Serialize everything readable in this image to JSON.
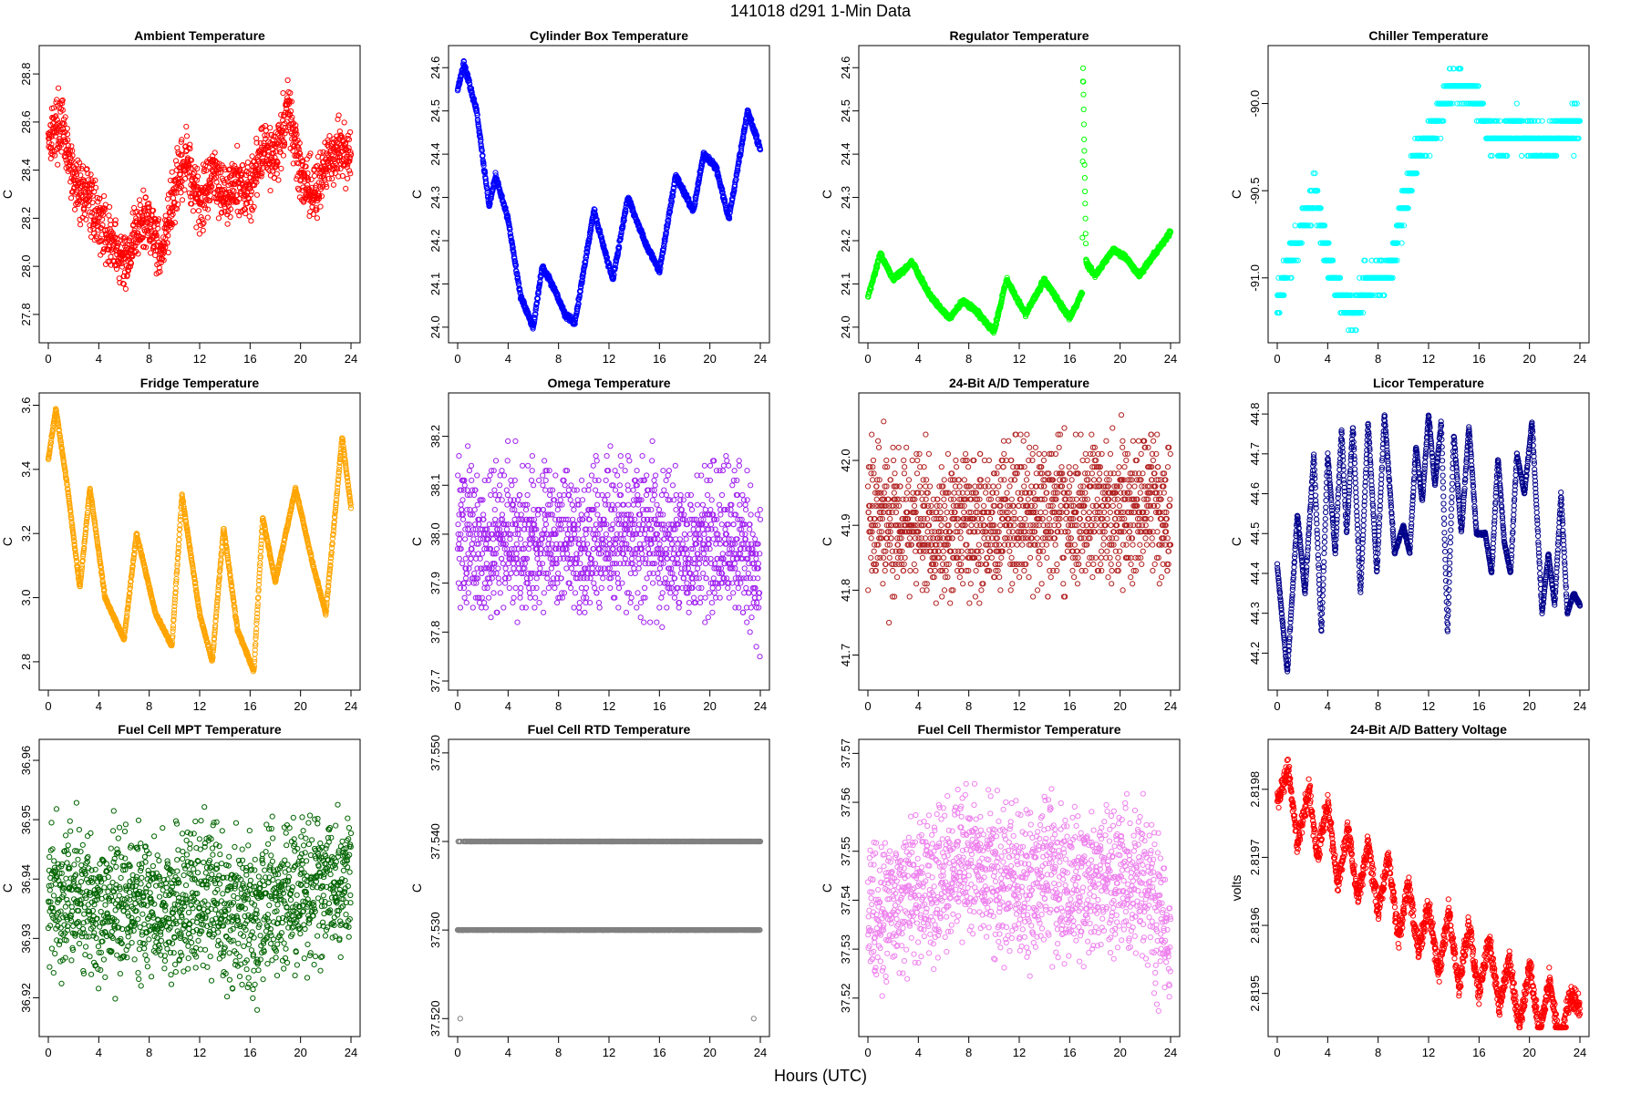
{
  "header": {
    "title": "141018    d291    1-Min Data",
    "xlabel": "Hours (UTC)"
  },
  "chart_data": [
    {
      "type": "scatter",
      "title": "Ambient Temperature",
      "ylabel": "C",
      "color": "#ff0000",
      "xlim": [
        0,
        24
      ],
      "ylim": [
        27.72,
        28.88
      ],
      "xticks": [
        "0",
        "4",
        "8",
        "12",
        "16",
        "20",
        "24"
      ],
      "xtick_values": [
        0,
        4,
        8,
        12,
        16,
        20,
        24
      ],
      "yticks": [
        "27.8",
        "28.0",
        "28.2",
        "28.4",
        "28.6",
        "28.8"
      ],
      "ytick_values": [
        27.8,
        28.0,
        28.2,
        28.4,
        28.6,
        28.8
      ],
      "series": [
        {
          "name": "Ambient Temperature",
          "x": [
            0,
            1,
            2,
            3,
            4,
            5,
            6,
            7,
            8,
            9,
            10,
            11,
            12,
            13,
            14,
            15,
            16,
            17,
            18,
            19,
            20,
            21,
            22,
            23,
            24
          ],
          "y": [
            28.55,
            28.6,
            28.35,
            28.3,
            28.2,
            28.1,
            28.0,
            28.15,
            28.2,
            28.05,
            28.3,
            28.45,
            28.25,
            28.4,
            28.3,
            28.35,
            28.3,
            28.5,
            28.45,
            28.65,
            28.4,
            28.3,
            28.4,
            28.5,
            28.45
          ],
          "noise": 0.09,
          "step": 0
        }
      ]
    },
    {
      "type": "scatter",
      "title": "Cylinder Box Temperature",
      "ylabel": "C",
      "color": "#0000ff",
      "xlim": [
        0,
        24
      ],
      "ylim": [
        23.985,
        24.63
      ],
      "xticks": [
        "0",
        "4",
        "8",
        "12",
        "16",
        "20",
        "24"
      ],
      "xtick_values": [
        0,
        4,
        8,
        12,
        16,
        20,
        24
      ],
      "yticks": [
        "24.0",
        "24.1",
        "24.2",
        "24.3",
        "24.4",
        "24.5",
        "24.6"
      ],
      "ytick_values": [
        24.0,
        24.1,
        24.2,
        24.3,
        24.4,
        24.5,
        24.6
      ],
      "series": [
        {
          "name": "Cylinder Box Temperature",
          "x": [
            0,
            0.5,
            1.5,
            2.5,
            3,
            4,
            5,
            6,
            6.7,
            7.5,
            8.5,
            9.3,
            10.8,
            12.3,
            13.5,
            14.8,
            16,
            17.3,
            18.7,
            19.5,
            20.5,
            21.5,
            23,
            24
          ],
          "y": [
            24.55,
            24.61,
            24.5,
            24.28,
            24.35,
            24.25,
            24.07,
            24.0,
            24.14,
            24.1,
            24.03,
            24.01,
            24.27,
            24.11,
            24.3,
            24.2,
            24.13,
            24.35,
            24.27,
            24.4,
            24.37,
            24.25,
            24.5,
            24.41
          ],
          "noise": 0.005,
          "step": 0
        }
      ]
    },
    {
      "type": "scatter",
      "title": "Regulator Temperature",
      "ylabel": "C",
      "color": "#00ff00",
      "xlim": [
        0,
        24
      ],
      "ylim": [
        23.985,
        24.63
      ],
      "xticks": [
        "0",
        "4",
        "8",
        "12",
        "16",
        "20",
        "24"
      ],
      "xtick_values": [
        0,
        4,
        8,
        12,
        16,
        20,
        24
      ],
      "yticks": [
        "24.0",
        "24.1",
        "24.2",
        "24.3",
        "24.4",
        "24.5",
        "24.6"
      ],
      "ytick_values": [
        24.0,
        24.1,
        24.2,
        24.3,
        24.4,
        24.5,
        24.6
      ],
      "series": [
        {
          "name": "Regulator Temperature",
          "x": [
            0,
            1,
            2,
            3.5,
            5,
            6.5,
            7.5,
            8.5,
            10,
            11,
            12.5,
            14,
            16,
            17.0,
            17.05,
            17.3,
            18,
            19.5,
            20.5,
            21.5,
            22.5,
            24
          ],
          "y": [
            24.07,
            24.17,
            24.11,
            24.15,
            24.07,
            24.02,
            24.06,
            24.04,
            23.99,
            24.11,
            24.03,
            24.11,
            24.02,
            24.08,
            24.62,
            24.15,
            24.12,
            24.18,
            24.16,
            24.12,
            24.16,
            24.22
          ],
          "noise": 0.004,
          "step": 0
        }
      ]
    },
    {
      "type": "scatter",
      "title": "Chiller Temperature",
      "ylabel": "C",
      "color": "#00ffff",
      "xlim": [
        0,
        24
      ],
      "ylim": [
        -91.32,
        -89.72
      ],
      "xticks": [
        "0",
        "4",
        "8",
        "12",
        "16",
        "20",
        "24"
      ],
      "xtick_values": [
        0,
        4,
        8,
        12,
        16,
        20,
        24
      ],
      "yticks": [
        "-91.0",
        "-90.5",
        "-90.0"
      ],
      "ytick_values": [
        -91.0,
        -90.5,
        -90.0
      ],
      "series": [
        {
          "name": "Chiller Temperature",
          "x": [
            0,
            1,
            2,
            3,
            4,
            5,
            6,
            7,
            8,
            9,
            10,
            11,
            12,
            13,
            14,
            15,
            16,
            17,
            18,
            19,
            20,
            21,
            22,
            23,
            24
          ],
          "y": [
            -91.15,
            -90.9,
            -90.7,
            -90.5,
            -90.9,
            -91.1,
            -91.2,
            -91.05,
            -91.0,
            -90.95,
            -90.6,
            -90.3,
            -90.2,
            -90.05,
            -89.85,
            -89.9,
            -90.0,
            -90.2,
            -90.2,
            -90.15,
            -90.2,
            -90.25,
            -90.2,
            -90.15,
            -90.1
          ],
          "noise": 0.07,
          "step": 0.1
        }
      ]
    },
    {
      "type": "scatter",
      "title": "Fridge Temperature",
      "ylabel": "C",
      "color": "#ffa500",
      "xlim": [
        0,
        24
      ],
      "ylim": [
        2.74,
        3.61
      ],
      "xticks": [
        "0",
        "4",
        "8",
        "12",
        "16",
        "20",
        "24"
      ],
      "xtick_values": [
        0,
        4,
        8,
        12,
        16,
        20,
        24
      ],
      "yticks": [
        "2.8",
        "3.0",
        "3.2",
        "3.4",
        "3.6"
      ],
      "ytick_values": [
        2.8,
        3.0,
        3.2,
        3.4,
        3.6
      ],
      "series": [
        {
          "name": "Fridge Temperature",
          "x": [
            0,
            0.6,
            1.5,
            2.5,
            3.3,
            4.5,
            6,
            7,
            8.5,
            9.8,
            10.6,
            12,
            13,
            13.9,
            15,
            16.3,
            17,
            18,
            19.6,
            21,
            22,
            23.3,
            24
          ],
          "y": [
            3.43,
            3.59,
            3.35,
            3.03,
            3.34,
            3.0,
            2.87,
            3.2,
            2.95,
            2.85,
            3.32,
            2.95,
            2.8,
            3.22,
            2.9,
            2.77,
            3.25,
            3.05,
            3.34,
            3.1,
            2.95,
            3.5,
            3.28
          ],
          "noise": 0.004,
          "step": 0
        }
      ]
    },
    {
      "type": "scatter",
      "title": "Omega Temperature",
      "ylabel": "C",
      "color": "#a020f0",
      "xlim": [
        0,
        24
      ],
      "ylim": [
        37.7,
        38.27
      ],
      "xticks": [
        "0",
        "4",
        "8",
        "12",
        "16",
        "20",
        "24"
      ],
      "xtick_values": [
        0,
        4,
        8,
        12,
        16,
        20,
        24
      ],
      "yticks": [
        "37.7",
        "37.8",
        "37.9",
        "38.0",
        "38.1",
        "38.2"
      ],
      "ytick_values": [
        37.7,
        37.8,
        37.9,
        38.0,
        38.1,
        38.2
      ],
      "series": [
        {
          "name": "Omega Temperature",
          "x": [
            0,
            2,
            4,
            6,
            8,
            10,
            12,
            14,
            16,
            18,
            20,
            22,
            24
          ],
          "y": [
            38.0,
            37.98,
            38.0,
            37.99,
            37.98,
            37.97,
            38.0,
            38.0,
            37.99,
            37.97,
            37.97,
            38.0,
            37.92
          ],
          "noise": 0.11,
          "step": 0.01
        }
      ]
    },
    {
      "type": "scatter",
      "title": "24-Bit A/D Temperature",
      "ylabel": "C",
      "color": "#b22222",
      "xlim": [
        0,
        24
      ],
      "ylim": [
        41.66,
        42.09
      ],
      "xticks": [
        "0",
        "4",
        "8",
        "12",
        "16",
        "20",
        "24"
      ],
      "xtick_values": [
        0,
        4,
        8,
        12,
        16,
        20,
        24
      ],
      "yticks": [
        "41.7",
        "41.8",
        "41.9",
        "42.0"
      ],
      "ytick_values": [
        41.7,
        41.8,
        41.9,
        42.0
      ],
      "series": [
        {
          "name": "24-Bit A/D Temperature",
          "x": [
            0,
            2,
            4,
            6,
            8,
            10,
            12,
            14,
            16,
            18,
            20,
            22,
            24
          ],
          "y": [
            41.92,
            41.9,
            41.9,
            41.89,
            41.9,
            41.91,
            41.91,
            41.92,
            41.92,
            41.93,
            41.92,
            41.93,
            41.9
          ],
          "noise": 0.08,
          "step": 0.01
        }
      ]
    },
    {
      "type": "scatter",
      "title": "Licor Temperature",
      "ylabel": "C",
      "color": "#00008b",
      "xlim": [
        0,
        24
      ],
      "ylim": [
        44.13,
        44.83
      ],
      "xticks": [
        "0",
        "4",
        "8",
        "12",
        "16",
        "20",
        "24"
      ],
      "xtick_values": [
        0,
        4,
        8,
        12,
        16,
        20,
        24
      ],
      "yticks": [
        "44.2",
        "44.3",
        "44.4",
        "44.5",
        "44.6",
        "44.7",
        "44.8"
      ],
      "ytick_values": [
        44.2,
        44.3,
        44.4,
        44.5,
        44.6,
        44.7,
        44.8
      ],
      "series": [
        {
          "name": "Licor Temperature",
          "x": [
            0,
            0.8,
            1.6,
            2.2,
            2.9,
            3.5,
            4.0,
            4.6,
            5.1,
            5.5,
            6.0,
            6.6,
            7.2,
            7.9,
            8.5,
            9.3,
            10.0,
            10.5,
            11.0,
            11.5,
            12.0,
            12.5,
            13.0,
            13.5,
            14.0,
            14.6,
            15.2,
            15.8,
            16.5,
            17.0,
            17.5,
            18.0,
            18.5,
            19.0,
            19.6,
            20.2,
            21.0,
            21.5,
            22.0,
            22.5,
            23.0,
            23.5,
            24.0
          ],
          "y": [
            44.42,
            44.15,
            44.55,
            44.35,
            44.7,
            44.25,
            44.7,
            44.45,
            44.76,
            44.5,
            44.77,
            44.35,
            44.78,
            44.4,
            44.8,
            44.45,
            44.52,
            44.45,
            44.72,
            44.58,
            44.8,
            44.62,
            44.78,
            44.25,
            44.75,
            44.5,
            44.77,
            44.5,
            44.5,
            44.4,
            44.69,
            44.48,
            44.4,
            44.7,
            44.6,
            44.78,
            44.3,
            44.45,
            44.32,
            44.6,
            44.3,
            44.35,
            44.32
          ],
          "noise": 0.003,
          "step": 0
        }
      ]
    },
    {
      "type": "scatter",
      "title": "Fuel Cell MPT Temperature",
      "ylabel": "C",
      "color": "#006400",
      "xlim": [
        0,
        24
      ],
      "ylim": [
        36.915,
        36.962
      ],
      "xticks": [
        "0",
        "4",
        "8",
        "12",
        "16",
        "20",
        "24"
      ],
      "xtick_values": [
        0,
        4,
        8,
        12,
        16,
        20,
        24
      ],
      "yticks": [
        "36.92",
        "36.93",
        "36.94",
        "36.95",
        "36.96"
      ],
      "ytick_values": [
        36.92,
        36.93,
        36.94,
        36.95,
        36.96
      ],
      "series": [
        {
          "name": "Fuel Cell MPT Temperature",
          "x": [
            0,
            2,
            4,
            6,
            8,
            10,
            12,
            14,
            16,
            18,
            20,
            22,
            24
          ],
          "y": [
            36.938,
            36.937,
            36.935,
            36.936,
            36.934,
            36.936,
            36.937,
            36.935,
            36.933,
            36.937,
            36.938,
            36.939,
            36.941
          ],
          "noise": 0.009,
          "step": 0
        }
      ]
    },
    {
      "type": "scatter",
      "title": "Fuel Cell RTD Temperature",
      "ylabel": "C",
      "color": "#808080",
      "xlim": [
        0,
        24
      ],
      "ylim": [
        37.519,
        37.5505
      ],
      "xticks": [
        "0",
        "4",
        "8",
        "12",
        "16",
        "20",
        "24"
      ],
      "xtick_values": [
        0,
        4,
        8,
        12,
        16,
        20,
        24
      ],
      "yticks": [
        "37.520",
        "37.530",
        "37.540",
        "37.550"
      ],
      "ytick_values": [
        37.52,
        37.53,
        37.54,
        37.55
      ],
      "series": [
        {
          "name": "Fuel Cell RTD Temperature",
          "x": [
            0,
            1,
            24
          ],
          "y": [
            37.53,
            37.535,
            37.535
          ],
          "noise": 0.0055,
          "step": 0.01
        }
      ]
    },
    {
      "type": "scatter",
      "title": "Fuel Cell Thermistor Temperature",
      "ylabel": "C",
      "color": "#ee82ee",
      "xlim": [
        0,
        24
      ],
      "ylim": [
        37.514,
        37.571
      ],
      "xticks": [
        "0",
        "4",
        "8",
        "12",
        "16",
        "20",
        "24"
      ],
      "xtick_values": [
        0,
        4,
        8,
        12,
        16,
        20,
        24
      ],
      "yticks": [
        "37.52",
        "37.53",
        "37.54",
        "37.55",
        "37.56",
        "37.57"
      ],
      "ytick_values": [
        37.52,
        37.53,
        37.54,
        37.55,
        37.56,
        37.57
      ],
      "series": [
        {
          "name": "Fuel Cell Thermistor Temperature",
          "x": [
            0,
            2,
            4,
            6,
            8,
            10,
            12,
            14,
            16,
            18,
            20,
            22,
            24
          ],
          "y": [
            37.535,
            37.54,
            37.542,
            37.544,
            37.548,
            37.545,
            37.543,
            37.545,
            37.544,
            37.543,
            37.544,
            37.542,
            37.53
          ],
          "noise": 0.011,
          "step": 0
        }
      ]
    },
    {
      "type": "scatter",
      "title": "24-Bit A/D Battery Voltage",
      "ylabel": "volts",
      "color": "#ff0000",
      "xlim": [
        0,
        24
      ],
      "ylim": [
        2.81945,
        2.81986
      ],
      "xticks": [
        "0",
        "4",
        "8",
        "12",
        "16",
        "20",
        "24"
      ],
      "xtick_values": [
        0,
        4,
        8,
        12,
        16,
        20,
        24
      ],
      "yticks": [
        "2.8195",
        "2.8196",
        "2.8197",
        "2.8198"
      ],
      "ytick_values": [
        2.8195,
        2.8196,
        2.8197,
        2.8198
      ],
      "series": [
        {
          "name": "24-Bit A/D Battery Voltage",
          "x": [
            0,
            0.9,
            1.6,
            2.5,
            3.2,
            4.0,
            4.8,
            5.6,
            6.4,
            7.2,
            8.0,
            8.8,
            9.6,
            10.4,
            11.2,
            12.0,
            12.8,
            13.6,
            14.4,
            15.2,
            16.0,
            16.8,
            17.6,
            18.4,
            19.2,
            20.0,
            20.8,
            21.6,
            22.4,
            23.2,
            24.0
          ],
          "y": [
            2.81978,
            2.81983,
            2.81972,
            2.8198,
            2.8197,
            2.81978,
            2.81966,
            2.81974,
            2.81964,
            2.81972,
            2.81962,
            2.8197,
            2.81958,
            2.81966,
            2.81956,
            2.81963,
            2.81953,
            2.81962,
            2.81951,
            2.8196,
            2.8195,
            2.81958,
            2.81948,
            2.81955,
            2.81945,
            2.81954,
            2.81944,
            2.81952,
            2.81942,
            2.8195,
            2.81948
          ],
          "noise": 1.2e-05,
          "step": 0
        }
      ]
    }
  ]
}
